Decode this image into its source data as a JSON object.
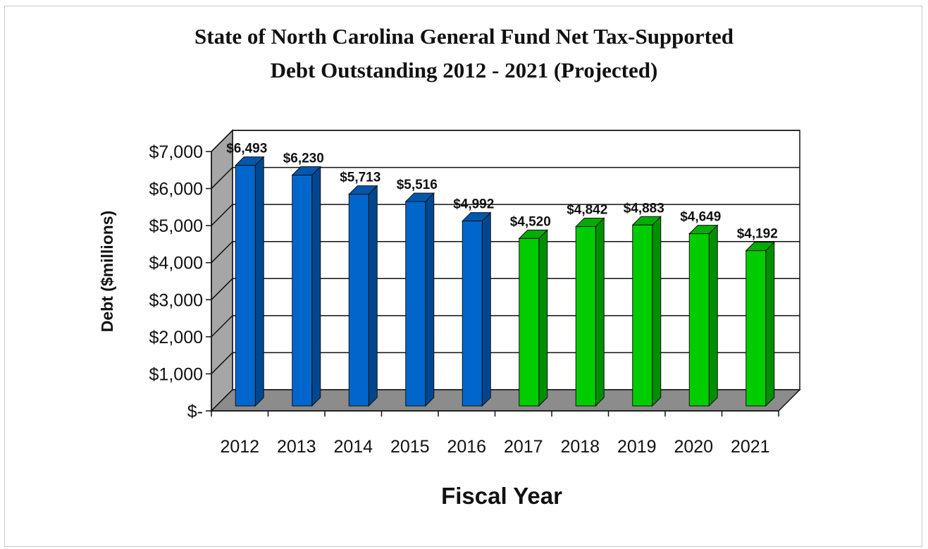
{
  "chart_data": {
    "type": "bar",
    "title_line1": "State of North Carolina General Fund Net Tax-Supported",
    "title_line2": "Debt Outstanding 2012 - 2021 (Projected)",
    "xlabel": "Fiscal Year",
    "ylabel": "Debt ($millions)",
    "ylim": [
      0,
      7000
    ],
    "yticks": [
      0,
      1000,
      2000,
      3000,
      4000,
      5000,
      6000,
      7000
    ],
    "ytick_labels": [
      "$-",
      "$1,000",
      "$2,000",
      "$3,000",
      "$4,000",
      "$5,000",
      "$6,000",
      "$7,000"
    ],
    "grid": true,
    "three_d": true,
    "categories": [
      "2012",
      "2013",
      "2014",
      "2015",
      "2016",
      "2017",
      "2018",
      "2019",
      "2020",
      "2021"
    ],
    "values": [
      6493,
      6230,
      5713,
      5516,
      4992,
      4520,
      4842,
      4883,
      4649,
      4192
    ],
    "data_labels": [
      "$6,493",
      "$6,230",
      "$5,713",
      "$5,516",
      "$4,992",
      "$4,520",
      "$4,842",
      "$4,883",
      "$4,649",
      "$4,192"
    ],
    "bar_colors": [
      "#0066cc",
      "#0066cc",
      "#0066cc",
      "#0066cc",
      "#0066cc",
      "#00cc00",
      "#00cc00",
      "#00cc00",
      "#00cc00",
      "#00cc00"
    ],
    "colors": {
      "actual": "#0066cc",
      "projected": "#00cc00",
      "floor": "#8c8c8c",
      "back_wall": "#ffffff",
      "side_wall": "#a6a6a6",
      "gridline": "#111111"
    }
  }
}
